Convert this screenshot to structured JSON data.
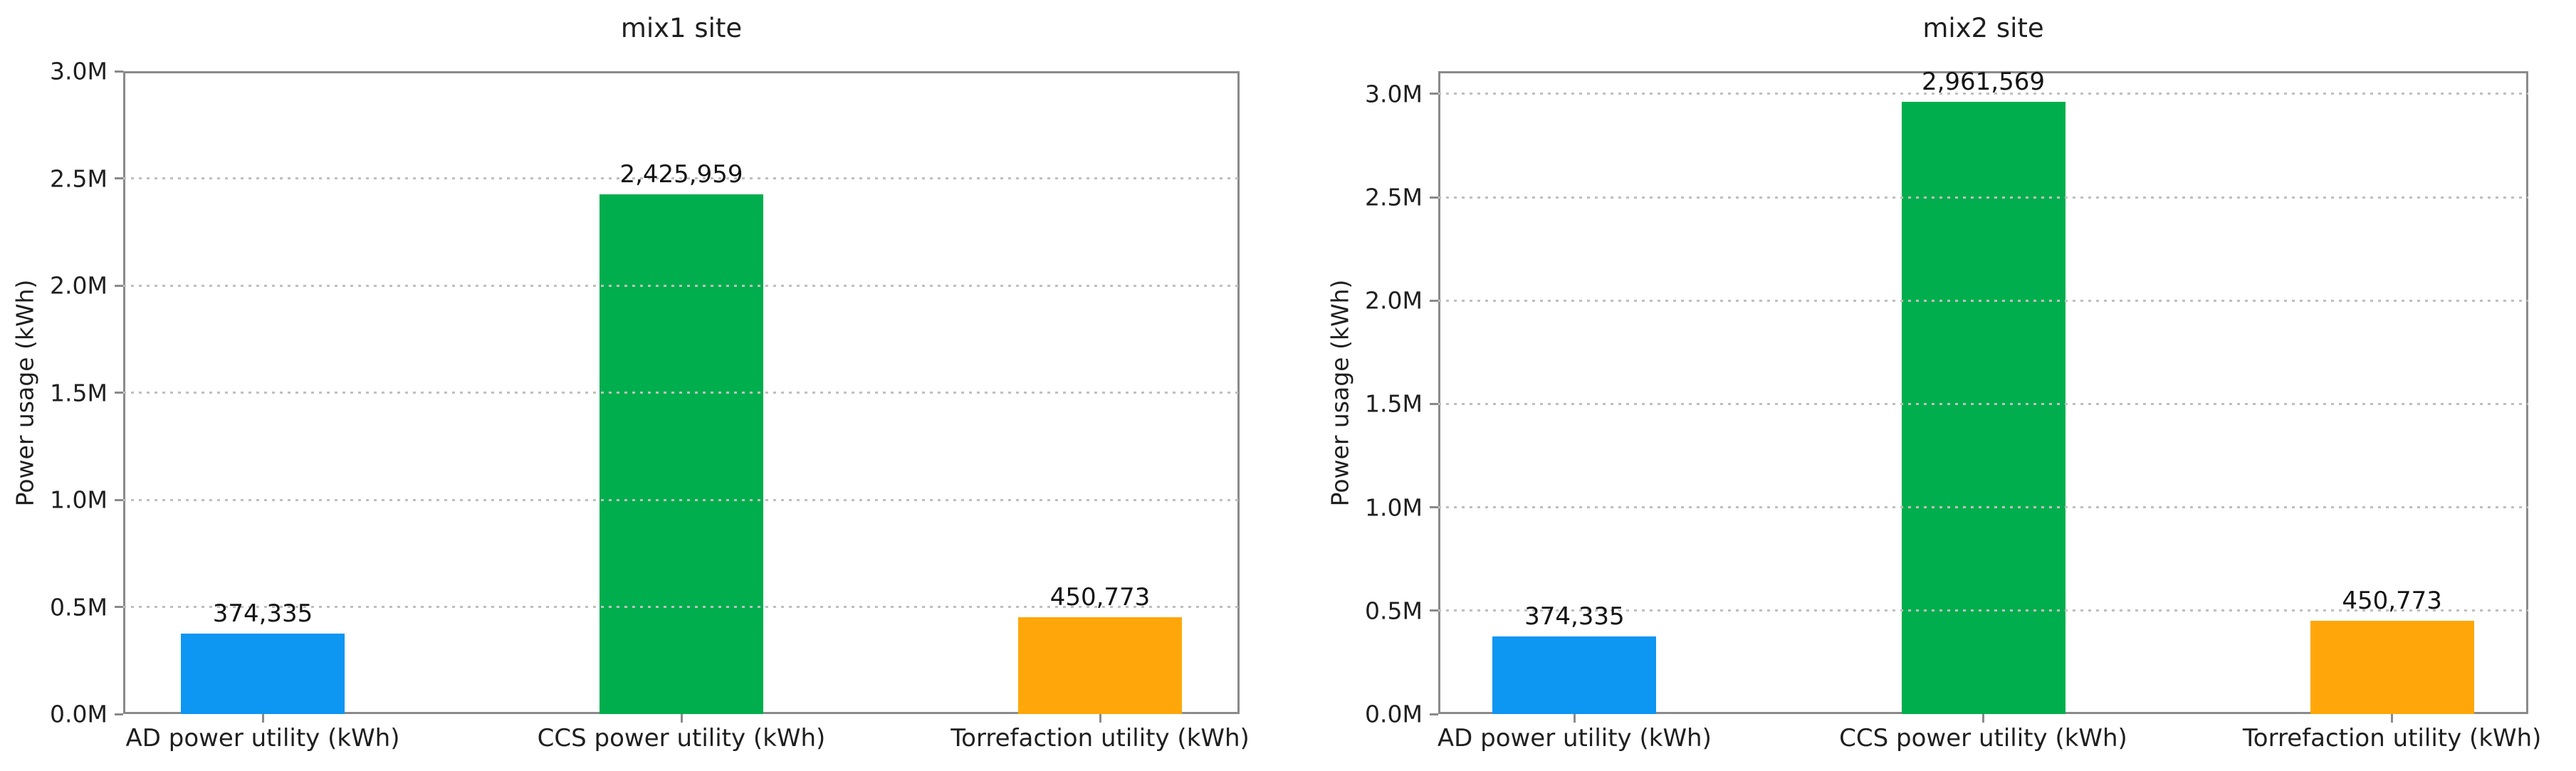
{
  "figure": {
    "description": "Two side-by-side bar charts of power usage per utility for two sites"
  },
  "palette": {
    "background": "#ffffff",
    "spine": "#8a8a8a",
    "grid": "#bfbfbf",
    "text": "#1f1f1f"
  },
  "chart_data": [
    {
      "type": "bar",
      "title": "mix1 site",
      "xlabel": "",
      "ylabel": "Power usage (kWh)",
      "categories": [
        "AD power utility (kWh)",
        "CCS power utility (kWh)",
        "Torrefaction utility (kWh)"
      ],
      "values": [
        374335,
        2425959,
        450773
      ],
      "value_labels": [
        "374,335",
        "2,425,959",
        "450,773"
      ],
      "bar_colors": [
        "#0d96f2",
        "#00ae4d",
        "#ffa70a"
      ],
      "ytick_values": [
        0,
        500000,
        1000000,
        1500000,
        2000000,
        2500000,
        3000000
      ],
      "ytick_labels": [
        "0.0M",
        "0.5M",
        "1.0M",
        "1.5M",
        "2.0M",
        "2.5M",
        "3.0M"
      ],
      "ylim": [
        0,
        3000000
      ],
      "grid": "horizontal dotted",
      "legend_position": "none"
    },
    {
      "type": "bar",
      "title": "mix2 site",
      "xlabel": "",
      "ylabel": "Power usage (kWh)",
      "categories": [
        "AD power utility (kWh)",
        "CCS power utility (kWh)",
        "Torrefaction utility (kWh)"
      ],
      "values": [
        374335,
        2961569,
        450773
      ],
      "value_labels": [
        "374,335",
        "2,961,569",
        "450,773"
      ],
      "bar_colors": [
        "#0d96f2",
        "#00ae4d",
        "#ffa70a"
      ],
      "ytick_values": [
        0,
        500000,
        1000000,
        1500000,
        2000000,
        2500000,
        3000000
      ],
      "ytick_labels": [
        "0.0M",
        "0.5M",
        "1.0M",
        "1.5M",
        "2.0M",
        "2.5M",
        "3.0M"
      ],
      "ylim": [
        0,
        3109647
      ],
      "grid": "horizontal dotted",
      "legend_position": "none"
    }
  ]
}
